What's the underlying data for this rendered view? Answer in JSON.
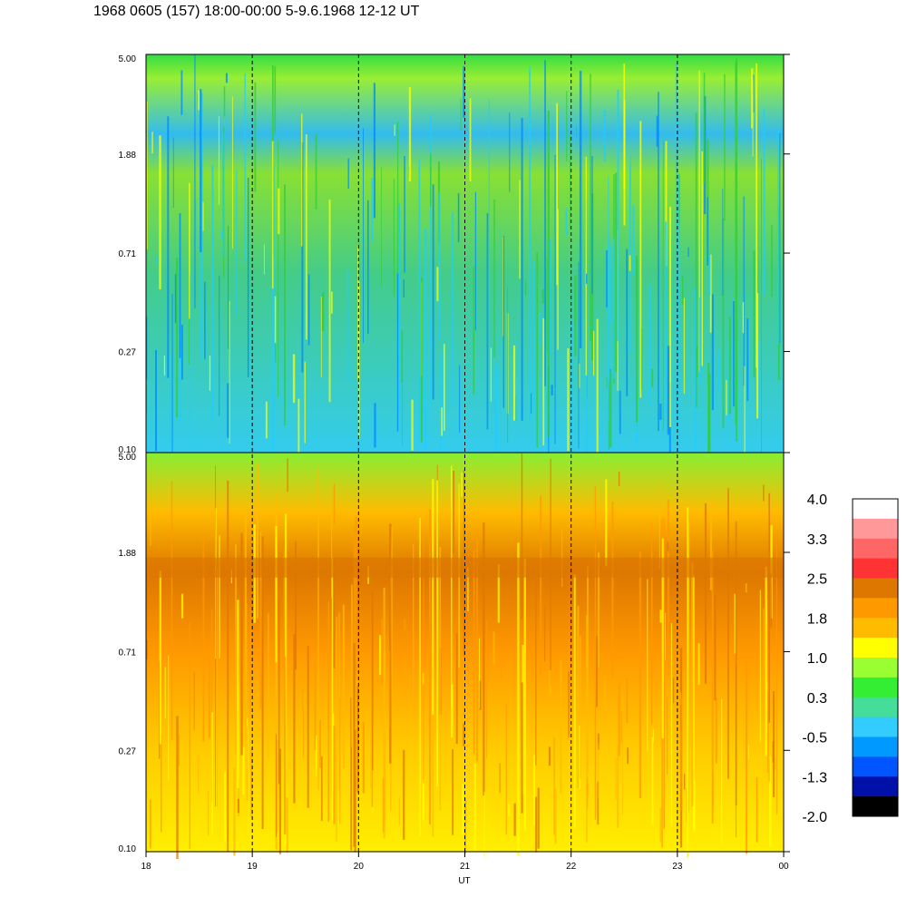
{
  "title": "1968 0605 (157) 18:00-00:00 5-9.6.1968  12-12 UT",
  "colors": {
    "background": "#ffffff",
    "axis": "#000000",
    "dash": "#000000"
  },
  "chart_data": {
    "type": "heatmap",
    "title": "1968 0605 (157) 18:00-00:00 5-9.6.1968  12-12 UT",
    "xlabel": "UT",
    "x_ticks": [
      "18",
      "19",
      "20",
      "21",
      "22",
      "23",
      "00"
    ],
    "x_range": [
      18,
      24
    ],
    "y_scale": "log",
    "y_range": [
      0.1,
      5.0
    ],
    "vertical_dashed_lines_at": [
      19,
      20,
      21,
      22,
      23
    ],
    "panels": [
      {
        "name": "upper",
        "y_ticks": [
          "5.00",
          "1.88",
          "0.71",
          "0.27",
          "0.10"
        ],
        "y_tick_values": [
          5.0,
          1.88,
          0.71,
          0.27,
          0.1
        ],
        "dominant_colors": [
          "#33cc33",
          "#22ccff",
          "#0088ff",
          "#ffff00"
        ]
      },
      {
        "name": "lower",
        "y_ticks": [
          "5.00",
          "1.88",
          "0.71",
          "0.27",
          "0.10"
        ],
        "y_tick_values": [
          5.0,
          1.88,
          0.71,
          0.27,
          0.1
        ],
        "dominant_colors": [
          "#ffbb00",
          "#ff9900",
          "#ffff00",
          "#dd7700"
        ]
      }
    ],
    "colorbar": {
      "labels": [
        "4.0",
        "3.3",
        "2.5",
        "1.8",
        "1.0",
        "0.3",
        "-0.5",
        "-1.3",
        "-2.0"
      ],
      "colors": [
        "#ffffff",
        "#ff9999",
        "#ff6666",
        "#ff3333",
        "#dd7700",
        "#ff9900",
        "#ffbb00",
        "#ffff00",
        "#99ff33",
        "#33ee33",
        "#44dd99",
        "#33ccff",
        "#0099ff",
        "#0055ff",
        "#0011aa",
        "#000000"
      ]
    }
  }
}
